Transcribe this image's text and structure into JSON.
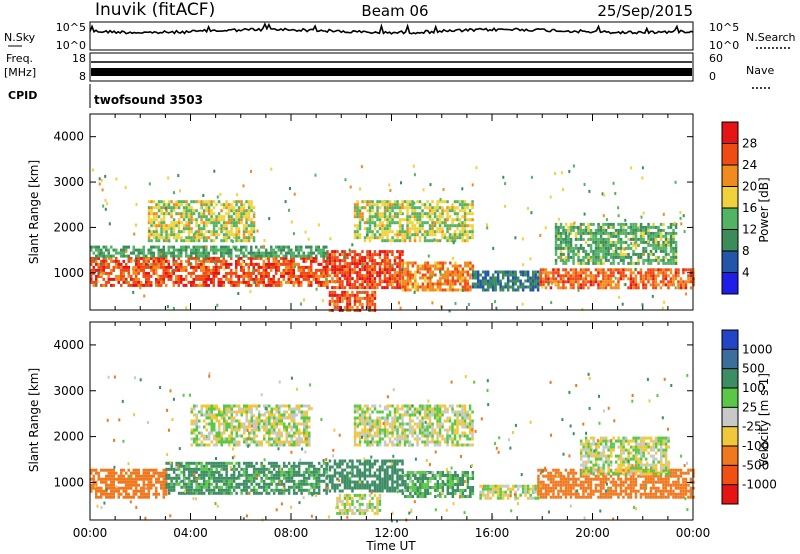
{
  "header": {
    "station": "Inuvik (fitACF)",
    "beam": "Beam 06",
    "date": "25/Sep/2015"
  },
  "top_panels": {
    "nsky_label": "N.Sky",
    "nsky_ticks": [
      "10^5",
      "10^0"
    ],
    "nsearch_label": "N.Search",
    "freq_label_1": "Freq.",
    "freq_label_2": "[MHz]",
    "freq_ticks": [
      "18",
      "8"
    ],
    "nave_label": "Nave",
    "nave_ticks": [
      "60",
      "0"
    ],
    "cpid_label": "CPID",
    "cpid_value": "twofsound 3503"
  },
  "time_axis": {
    "label": "Time UT",
    "ticks": [
      "00:00",
      "04:00",
      "08:00",
      "12:00",
      "16:00",
      "20:00",
      "00:00"
    ]
  },
  "colors": {
    "power_scale": [
      "#1e1ee6",
      "#2355a8",
      "#3c8c5a",
      "#50b464",
      "#f0d23c",
      "#f08c1e",
      "#f04b14",
      "#e61414"
    ],
    "velocity_scale": [
      "#2346c8",
      "#3c6e9c",
      "#3c8c64",
      "#5ac846",
      "#c8c8c8",
      "#f0c83c",
      "#f0781e",
      "#f05014",
      "#e61414"
    ]
  },
  "chart_data": [
    {
      "type": "heatmap",
      "title": "Power",
      "ylabel": "Slant Range [km]",
      "ylim": [
        180,
        4500
      ],
      "yticks": [
        1000,
        2000,
        3000,
        4000
      ],
      "xlabel": "",
      "xlim_hours": [
        0,
        24
      ],
      "colorbar": {
        "label": "Power [dB]",
        "ticks": [
          "4",
          "8",
          "12",
          "16",
          "20",
          "24",
          "28"
        ],
        "range": [
          0,
          32
        ]
      },
      "bands": [
        {
          "t0": 0.0,
          "t1": 9.4,
          "r0": 700,
          "r1": 1350,
          "level": 26
        },
        {
          "t0": 9.4,
          "t1": 12.4,
          "r0": 700,
          "r1": 1500,
          "level": 27
        },
        {
          "t0": 12.4,
          "t1": 15.2,
          "r0": 650,
          "r1": 1250,
          "level": 23
        },
        {
          "t0": 17.8,
          "t1": 24.0,
          "r0": 700,
          "r1": 1100,
          "level": 25
        },
        {
          "t0": 0.0,
          "t1": 9.4,
          "r0": 1350,
          "r1": 1600,
          "level": 12
        },
        {
          "t0": 2.3,
          "t1": 6.5,
          "r0": 1700,
          "r1": 2600,
          "level": 17
        },
        {
          "t0": 10.5,
          "t1": 15.2,
          "r0": 1700,
          "r1": 2600,
          "level": 17
        },
        {
          "t0": 9.5,
          "t1": 11.3,
          "r0": 200,
          "r1": 600,
          "level": 26
        },
        {
          "t0": 15.2,
          "t1": 17.8,
          "r0": 600,
          "r1": 1050,
          "level": 8
        },
        {
          "t0": 18.5,
          "t1": 23.3,
          "r0": 1200,
          "r1": 2100,
          "level": 13
        }
      ]
    },
    {
      "type": "heatmap",
      "title": "Velocity",
      "ylabel": "Slant Range [km]",
      "ylim": [
        180,
        4500
      ],
      "yticks": [
        1000,
        2000,
        3000,
        4000
      ],
      "xlabel": "Time UT",
      "xlim_hours": [
        0,
        24
      ],
      "colorbar": {
        "label": "Velocity [m s-1]",
        "ticks": [
          "1000",
          "500",
          "100",
          "25",
          "-25",
          "-100",
          "-500",
          "-1000"
        ]
      },
      "bands": [
        {
          "t0": 0.0,
          "t1": 3.0,
          "r0": 700,
          "r1": 1300,
          "level": -300
        },
        {
          "t0": 3.0,
          "t1": 9.4,
          "r0": 750,
          "r1": 1450,
          "level": 150
        },
        {
          "t0": 9.4,
          "t1": 12.4,
          "r0": 800,
          "r1": 1500,
          "level": 200
        },
        {
          "t0": 12.4,
          "t1": 15.2,
          "r0": 700,
          "r1": 1250,
          "level": 100
        },
        {
          "t0": 15.5,
          "t1": 17.8,
          "r0": 650,
          "r1": 950,
          "level": 0
        },
        {
          "t0": 17.8,
          "t1": 24.0,
          "r0": 700,
          "r1": 1300,
          "level": -400
        },
        {
          "t0": 4.0,
          "t1": 8.7,
          "r0": 1800,
          "r1": 2700,
          "level": 0
        },
        {
          "t0": 10.5,
          "t1": 15.2,
          "r0": 1800,
          "r1": 2700,
          "level": 0
        },
        {
          "t0": 9.8,
          "t1": 11.5,
          "r0": 300,
          "r1": 750,
          "level": 0
        },
        {
          "t0": 19.5,
          "t1": 23.0,
          "r0": 1200,
          "r1": 2000,
          "level": 0
        }
      ]
    }
  ]
}
